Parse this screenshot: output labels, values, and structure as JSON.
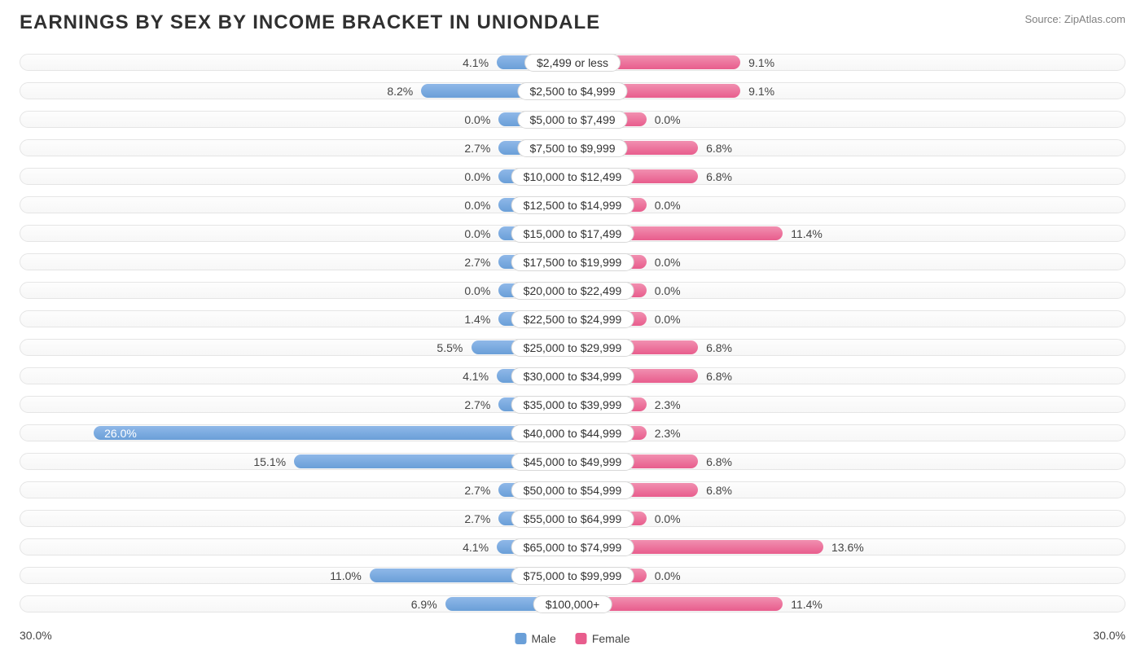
{
  "title": "EARNINGS BY SEX BY INCOME BRACKET IN UNIONDALE",
  "source": "Source: ZipAtlas.com",
  "axis_max_label": "30.0%",
  "axis_max": 30.0,
  "min_bar_pct": 4.0,
  "legend": {
    "male": "Male",
    "female": "Female"
  },
  "colors": {
    "male_bar": "linear-gradient(to bottom, #8fb8e8, #6a9fd8)",
    "female_bar": "linear-gradient(to bottom, #f18fb0, #e85d8d)",
    "male_swatch": "#6a9fd8",
    "female_swatch": "#e85d8d",
    "track_border": "#e5e5e5",
    "title": "#303030",
    "source": "#808080"
  },
  "brackets": [
    {
      "label": "$2,499 or less",
      "male": 4.1,
      "female": 9.1
    },
    {
      "label": "$2,500 to $4,999",
      "male": 8.2,
      "female": 9.1
    },
    {
      "label": "$5,000 to $7,499",
      "male": 0.0,
      "female": 0.0
    },
    {
      "label": "$7,500 to $9,999",
      "male": 2.7,
      "female": 6.8
    },
    {
      "label": "$10,000 to $12,499",
      "male": 0.0,
      "female": 6.8
    },
    {
      "label": "$12,500 to $14,999",
      "male": 0.0,
      "female": 0.0
    },
    {
      "label": "$15,000 to $17,499",
      "male": 0.0,
      "female": 11.4
    },
    {
      "label": "$17,500 to $19,999",
      "male": 2.7,
      "female": 0.0
    },
    {
      "label": "$20,000 to $22,499",
      "male": 0.0,
      "female": 0.0
    },
    {
      "label": "$22,500 to $24,999",
      "male": 1.4,
      "female": 0.0
    },
    {
      "label": "$25,000 to $29,999",
      "male": 5.5,
      "female": 6.8
    },
    {
      "label": "$30,000 to $34,999",
      "male": 4.1,
      "female": 6.8
    },
    {
      "label": "$35,000 to $39,999",
      "male": 2.7,
      "female": 2.3
    },
    {
      "label": "$40,000 to $44,999",
      "male": 26.0,
      "female": 2.3
    },
    {
      "label": "$45,000 to $49,999",
      "male": 15.1,
      "female": 6.8
    },
    {
      "label": "$50,000 to $54,999",
      "male": 2.7,
      "female": 6.8
    },
    {
      "label": "$55,000 to $64,999",
      "male": 2.7,
      "female": 0.0
    },
    {
      "label": "$65,000 to $74,999",
      "male": 4.1,
      "female": 13.6
    },
    {
      "label": "$75,000 to $99,999",
      "male": 11.0,
      "female": 0.0
    },
    {
      "label": "$100,000+",
      "male": 6.9,
      "female": 11.4
    }
  ]
}
